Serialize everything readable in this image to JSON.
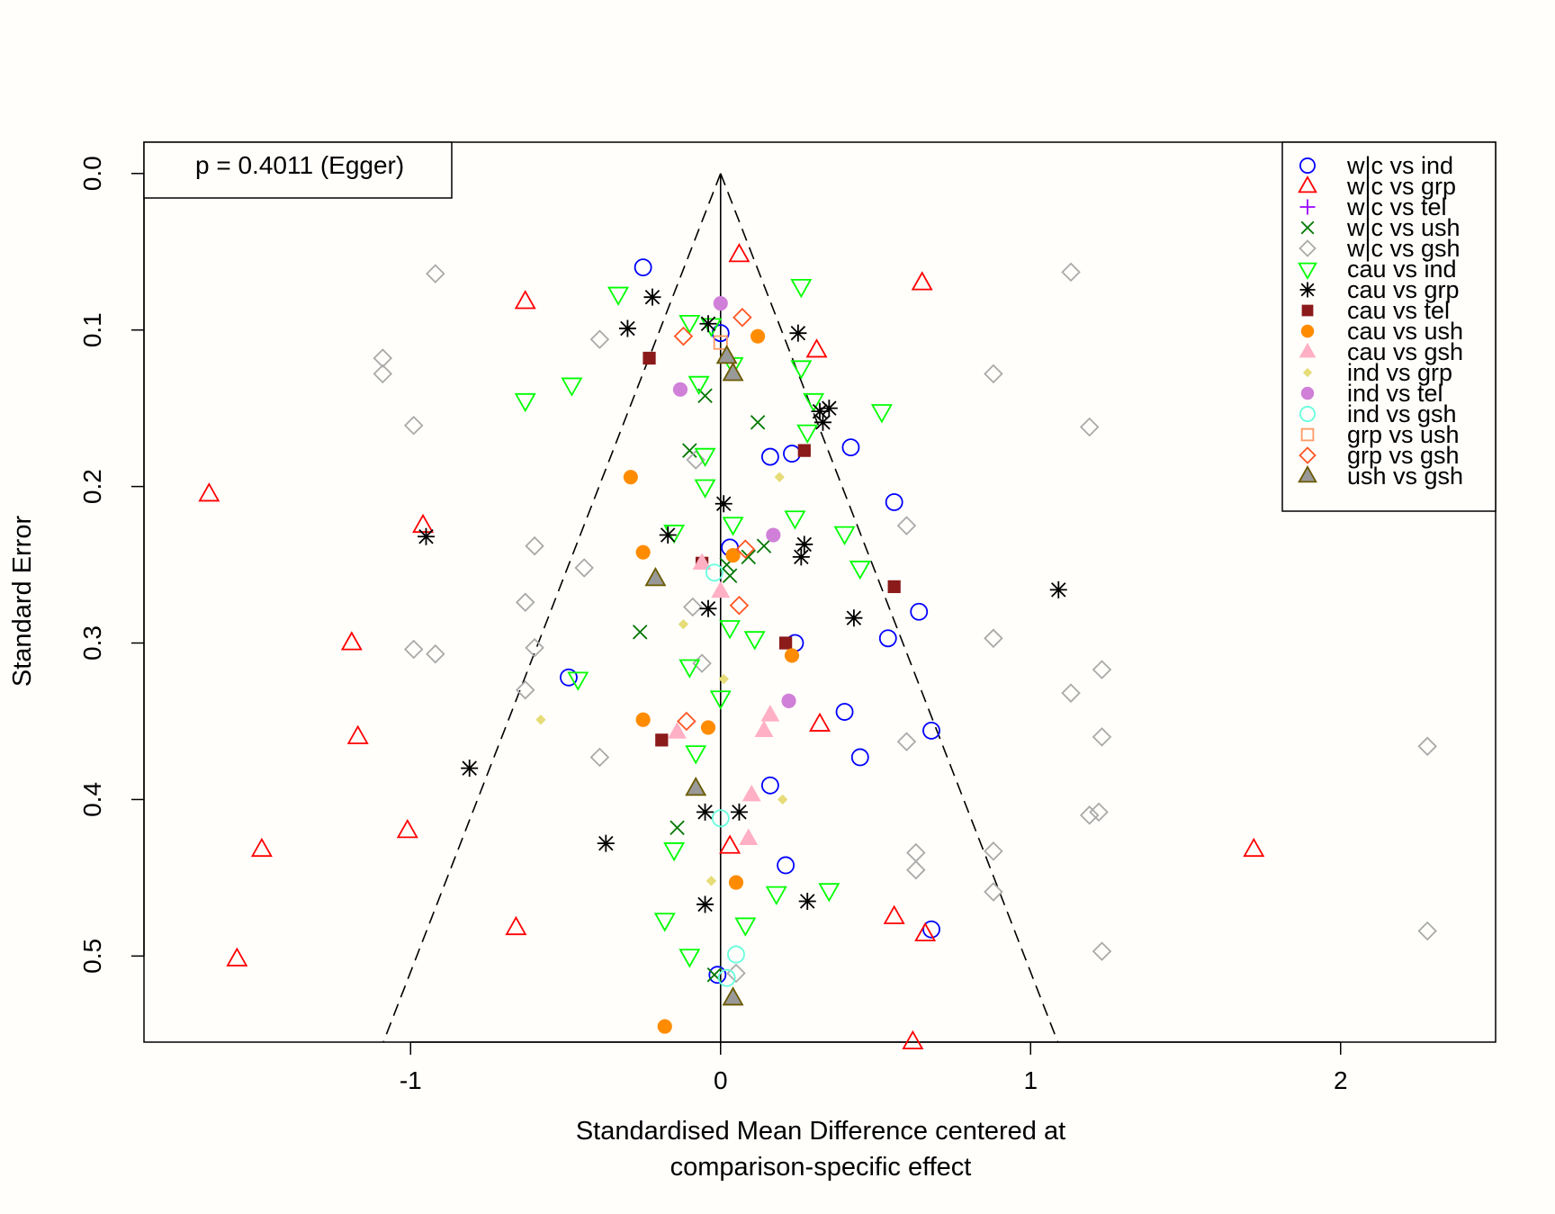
{
  "chart_data": {
    "type": "scatter",
    "title": "",
    "xlabel_lines": [
      "Standardised Mean Difference centered at",
      "comparison-specific effect"
    ],
    "ylabel": "Standard Error",
    "xlim": [
      -1.86,
      2.5
    ],
    "ylim_reversed": [
      0.555,
      -0.02
    ],
    "x_ticks": [
      -1,
      0,
      1,
      2
    ],
    "x_tick_labels": [
      "-1",
      "0",
      "1",
      "2"
    ],
    "y_ticks": [
      0.0,
      0.1,
      0.2,
      0.3,
      0.4,
      0.5
    ],
    "y_tick_labels": [
      "0.0",
      "0.1",
      "0.2",
      "0.3",
      "0.4",
      "0.5"
    ],
    "annotation": "p = 0.4011 (Egger)",
    "funnel": {
      "apex": [
        0,
        0
      ],
      "base_se": 0.555,
      "slope": 1.96
    },
    "legend_position": "top-right",
    "series": [
      {
        "name": "w|c vs ind",
        "marker": "circle-open",
        "color": "#0000ff",
        "points": [
          [
            -0.25,
            0.06
          ],
          [
            0.0,
            0.102
          ],
          [
            0.16,
            0.181
          ],
          [
            0.23,
            0.179
          ],
          [
            0.42,
            0.175
          ],
          [
            0.56,
            0.21
          ],
          [
            0.03,
            0.239
          ],
          [
            0.64,
            0.28
          ],
          [
            0.24,
            0.3
          ],
          [
            0.54,
            0.297
          ],
          [
            -0.49,
            0.322
          ],
          [
            0.4,
            0.344
          ],
          [
            0.68,
            0.356
          ],
          [
            0.45,
            0.373
          ],
          [
            0.16,
            0.391
          ],
          [
            0.21,
            0.442
          ],
          [
            0.68,
            0.483
          ],
          [
            -0.01,
            0.512
          ]
        ]
      },
      {
        "name": "w|c vs grp",
        "marker": "triangle-up-open",
        "color": "#ff0000",
        "points": [
          [
            0.06,
            0.052
          ],
          [
            0.65,
            0.07
          ],
          [
            -0.63,
            0.082
          ],
          [
            0.31,
            0.113
          ],
          [
            -1.65,
            0.205
          ],
          [
            -0.96,
            0.225
          ],
          [
            -1.19,
            0.3
          ],
          [
            0.32,
            0.352
          ],
          [
            -1.17,
            0.36
          ],
          [
            -1.01,
            0.42
          ],
          [
            0.03,
            0.43
          ],
          [
            -1.48,
            0.432
          ],
          [
            1.72,
            0.432
          ],
          [
            0.56,
            0.475
          ],
          [
            -0.66,
            0.482
          ],
          [
            0.66,
            0.486
          ],
          [
            -1.56,
            0.502
          ],
          [
            0.62,
            0.555
          ]
        ]
      },
      {
        "name": "w|c vs tel",
        "marker": "plus",
        "color": "#9900ff",
        "points": []
      },
      {
        "name": "w|c vs ush",
        "marker": "x",
        "color": "#007700",
        "points": [
          [
            -0.05,
            0.142
          ],
          [
            0.12,
            0.159
          ],
          [
            -0.1,
            0.177
          ],
          [
            0.14,
            0.238
          ],
          [
            0.09,
            0.245
          ],
          [
            0.02,
            0.25
          ],
          [
            0.03,
            0.257
          ],
          [
            -0.26,
            0.293
          ],
          [
            -0.14,
            0.418
          ],
          [
            -0.02,
            0.512
          ]
        ]
      },
      {
        "name": "w|c vs gsh",
        "marker": "diamond-open",
        "color": "#aaaaaa",
        "points": [
          [
            -0.92,
            0.064
          ],
          [
            1.13,
            0.063
          ],
          [
            -0.39,
            0.106
          ],
          [
            -1.09,
            0.118
          ],
          [
            -1.09,
            0.128
          ],
          [
            0.88,
            0.128
          ],
          [
            -0.99,
            0.161
          ],
          [
            1.19,
            0.162
          ],
          [
            -0.08,
            0.183
          ],
          [
            0.6,
            0.225
          ],
          [
            -0.6,
            0.238
          ],
          [
            -0.44,
            0.252
          ],
          [
            -0.63,
            0.274
          ],
          [
            -0.09,
            0.277
          ],
          [
            0.88,
            0.297
          ],
          [
            -0.6,
            0.303
          ],
          [
            -0.99,
            0.304
          ],
          [
            -0.92,
            0.307
          ],
          [
            -0.06,
            0.313
          ],
          [
            1.23,
            0.317
          ],
          [
            -0.63,
            0.33
          ],
          [
            1.13,
            0.332
          ],
          [
            0.6,
            0.363
          ],
          [
            1.23,
            0.36
          ],
          [
            2.28,
            0.366
          ],
          [
            -0.39,
            0.373
          ],
          [
            1.19,
            0.41
          ],
          [
            1.22,
            0.408
          ],
          [
            0.63,
            0.434
          ],
          [
            0.88,
            0.433
          ],
          [
            0.63,
            0.445
          ],
          [
            0.88,
            0.459
          ],
          [
            2.28,
            0.484
          ],
          [
            1.23,
            0.497
          ],
          [
            0.05,
            0.511
          ]
        ]
      },
      {
        "name": "cau vs ind",
        "marker": "triangle-down-open",
        "color": "#00ff00",
        "points": [
          [
            0.26,
            0.072
          ],
          [
            -0.33,
            0.077
          ],
          [
            -0.1,
            0.095
          ],
          [
            -0.03,
            0.097
          ],
          [
            0.04,
            0.122
          ],
          [
            0.26,
            0.124
          ],
          [
            -0.07,
            0.134
          ],
          [
            -0.48,
            0.135
          ],
          [
            -0.63,
            0.145
          ],
          [
            0.3,
            0.145
          ],
          [
            0.52,
            0.152
          ],
          [
            0.28,
            0.165
          ],
          [
            -0.05,
            0.18
          ],
          [
            -0.05,
            0.2
          ],
          [
            0.04,
            0.224
          ],
          [
            0.24,
            0.22
          ],
          [
            -0.15,
            0.229
          ],
          [
            0.4,
            0.23
          ],
          [
            0.45,
            0.252
          ],
          [
            0.03,
            0.29
          ],
          [
            0.11,
            0.297
          ],
          [
            -0.1,
            0.315
          ],
          [
            -0.46,
            0.323
          ],
          [
            0.0,
            0.335
          ],
          [
            -0.08,
            0.37
          ],
          [
            -0.15,
            0.432
          ],
          [
            0.35,
            0.458
          ],
          [
            0.18,
            0.46
          ],
          [
            -0.18,
            0.477
          ],
          [
            0.08,
            0.48
          ],
          [
            -0.1,
            0.5
          ]
        ]
      },
      {
        "name": "cau vs grp",
        "marker": "asterisk",
        "color": "#000000",
        "points": [
          [
            -0.22,
            0.079
          ],
          [
            -0.3,
            0.099
          ],
          [
            -0.04,
            0.096
          ],
          [
            0.25,
            0.102
          ],
          [
            0.35,
            0.15
          ],
          [
            0.32,
            0.152
          ],
          [
            0.33,
            0.159
          ],
          [
            0.01,
            0.211
          ],
          [
            -0.17,
            0.231
          ],
          [
            -0.95,
            0.232
          ],
          [
            0.27,
            0.237
          ],
          [
            0.26,
            0.245
          ],
          [
            1.09,
            0.266
          ],
          [
            -0.04,
            0.278
          ],
          [
            0.43,
            0.284
          ],
          [
            -0.81,
            0.38
          ],
          [
            -0.05,
            0.408
          ],
          [
            0.06,
            0.408
          ],
          [
            -0.37,
            0.428
          ],
          [
            -0.05,
            0.467
          ],
          [
            0.28,
            0.465
          ]
        ]
      },
      {
        "name": "cau vs tel",
        "marker": "square-filled",
        "color": "#8b1a1a",
        "points": [
          [
            -0.23,
            0.118
          ],
          [
            0.27,
            0.177
          ],
          [
            -0.06,
            0.249
          ],
          [
            0.56,
            0.264
          ],
          [
            0.21,
            0.3
          ],
          [
            -0.19,
            0.362
          ]
        ]
      },
      {
        "name": "cau vs ush",
        "marker": "circle-filled",
        "color": "#ff8c00",
        "points": [
          [
            0.12,
            0.104
          ],
          [
            -0.29,
            0.194
          ],
          [
            -0.25,
            0.242
          ],
          [
            0.04,
            0.244
          ],
          [
            0.23,
            0.308
          ],
          [
            -0.25,
            0.349
          ],
          [
            -0.04,
            0.354
          ],
          [
            0.05,
            0.453
          ],
          [
            -0.18,
            0.545
          ]
        ]
      },
      {
        "name": "cau vs gsh",
        "marker": "triangle-up-filled",
        "color": "#ffb0c4",
        "points": [
          [
            -0.06,
            0.249
          ],
          [
            0.0,
            0.267
          ],
          [
            0.16,
            0.346
          ],
          [
            0.14,
            0.356
          ],
          [
            -0.14,
            0.357
          ],
          [
            0.1,
            0.397
          ],
          [
            0.09,
            0.425
          ]
        ]
      },
      {
        "name": "ind vs grp",
        "marker": "diamond-filled-small",
        "color": "#e6dc78",
        "points": [
          [
            0.19,
            0.194
          ],
          [
            -0.12,
            0.288
          ],
          [
            0.01,
            0.323
          ],
          [
            -0.58,
            0.349
          ],
          [
            0.2,
            0.4
          ],
          [
            -0.03,
            0.452
          ]
        ]
      },
      {
        "name": "ind vs tel",
        "marker": "circle-filled",
        "color": "#d080d8",
        "points": [
          [
            0.0,
            0.083
          ],
          [
            -0.13,
            0.138
          ],
          [
            0.17,
            0.231
          ],
          [
            0.22,
            0.337
          ]
        ]
      },
      {
        "name": "ind vs gsh",
        "marker": "circle-open",
        "color": "#66ffdd",
        "points": [
          [
            -0.02,
            0.255
          ],
          [
            0.0,
            0.412
          ],
          [
            0.05,
            0.499
          ],
          [
            0.02,
            0.514
          ]
        ]
      },
      {
        "name": "grp vs ush",
        "marker": "square-open",
        "color": "#ff9966",
        "points": [
          [
            0.0,
            0.108
          ]
        ]
      },
      {
        "name": "grp vs gsh",
        "marker": "diamond-open",
        "color": "#ff5522",
        "points": [
          [
            -0.12,
            0.104
          ],
          [
            0.07,
            0.092
          ],
          [
            0.08,
            0.24
          ],
          [
            0.06,
            0.276
          ],
          [
            -0.11,
            0.35
          ]
        ]
      },
      {
        "name": "ush vs gsh",
        "marker": "triangle-up-gray",
        "color": "#6b5a00",
        "points": [
          [
            0.02,
            0.117
          ],
          [
            0.04,
            0.128
          ],
          [
            -0.21,
            0.259
          ],
          [
            -0.08,
            0.393
          ],
          [
            0.04,
            0.527
          ]
        ]
      }
    ]
  }
}
